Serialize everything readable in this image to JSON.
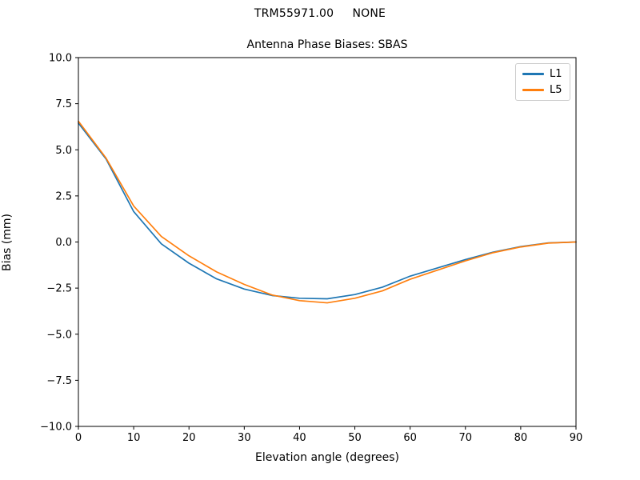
{
  "figure": {
    "background": "#ffffff",
    "suptitle": "TRM55971.00     NONE"
  },
  "chart_data": {
    "type": "line",
    "title": "Antenna Phase Biases: SBAS",
    "xlabel": "Elevation angle (degrees)",
    "ylabel": "Bias (mm)",
    "xlim": [
      0,
      90
    ],
    "ylim": [
      -10,
      10
    ],
    "x_ticks": [
      0,
      10,
      20,
      30,
      40,
      50,
      60,
      70,
      80,
      90
    ],
    "y_ticks": [
      -10,
      -7.5,
      -5,
      -2.5,
      0,
      2.5,
      5,
      7.5,
      10
    ],
    "grid": false,
    "legend_position": "upper right",
    "frame_color": "#000000",
    "x": [
      0,
      5,
      10,
      15,
      20,
      25,
      30,
      35,
      40,
      45,
      50,
      55,
      60,
      65,
      70,
      75,
      80,
      85,
      90
    ],
    "series": [
      {
        "name": "L1",
        "color": "#1f77b4",
        "values": [
          6.45,
          4.5,
          1.65,
          -0.1,
          -1.15,
          -2.0,
          -2.55,
          -2.9,
          -3.05,
          -3.08,
          -2.85,
          -2.45,
          -1.85,
          -1.4,
          -0.95,
          -0.55,
          -0.25,
          -0.05,
          0.0
        ]
      },
      {
        "name": "L5",
        "color": "#ff7f0e",
        "values": [
          6.55,
          4.55,
          1.95,
          0.3,
          -0.75,
          -1.62,
          -2.3,
          -2.87,
          -3.18,
          -3.3,
          -3.05,
          -2.65,
          -2.02,
          -1.52,
          -1.02,
          -0.58,
          -0.27,
          -0.06,
          0.0
        ]
      }
    ]
  }
}
